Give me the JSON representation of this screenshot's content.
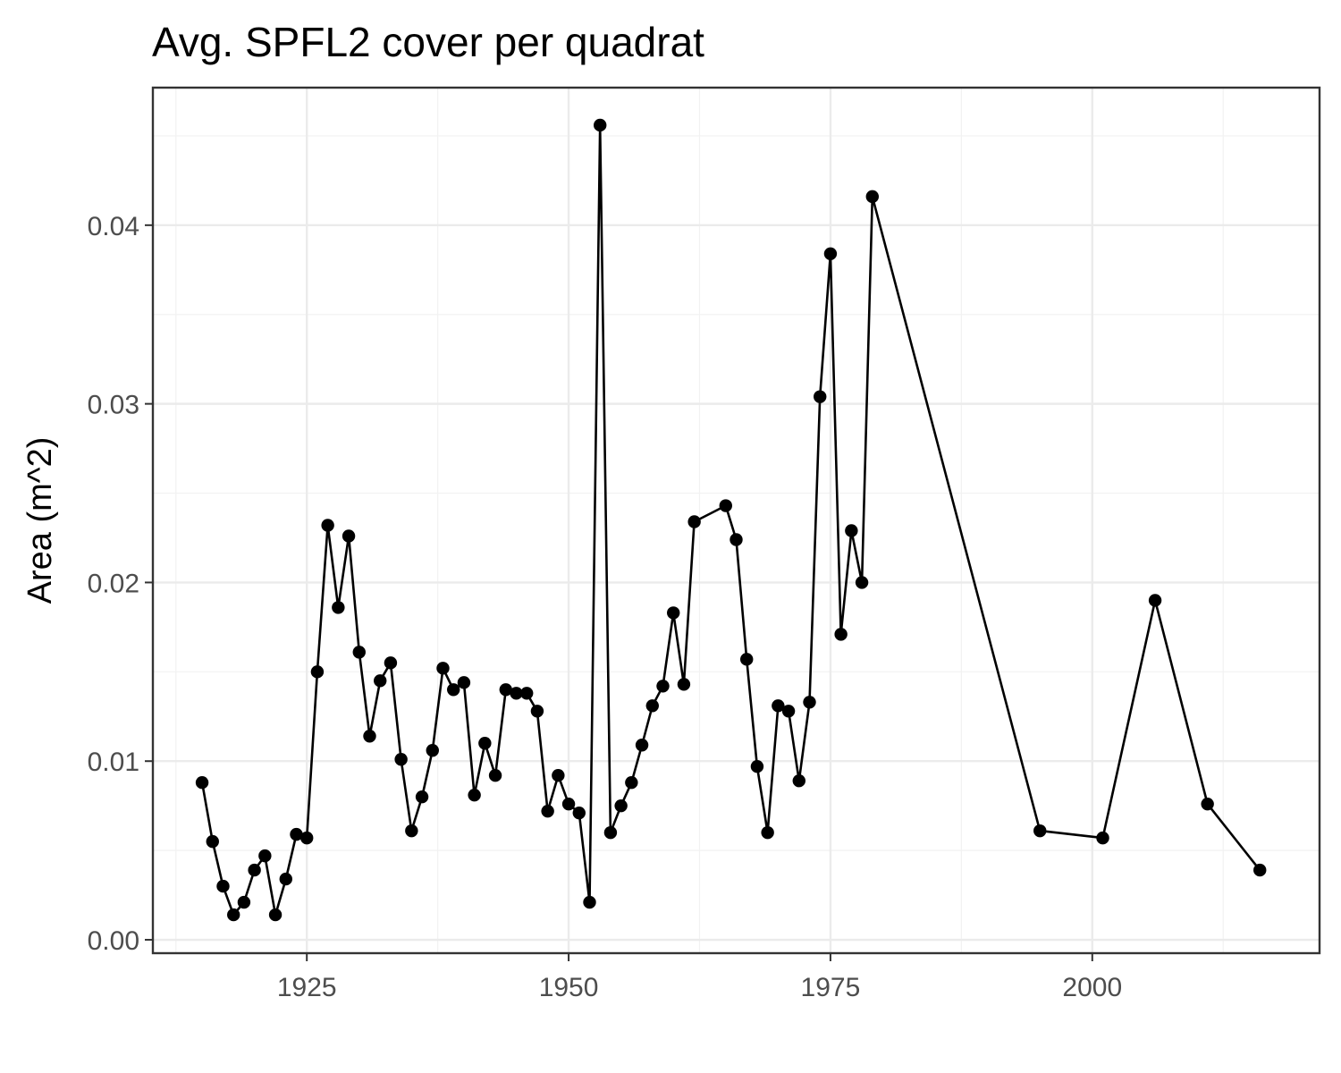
{
  "chart_data": {
    "type": "line",
    "title": "Avg. SPFL2 cover per quadrat",
    "xlabel": "",
    "ylabel": "Area (m^2)",
    "xlim": [
      1910.3,
      2021.7
    ],
    "ylim": [
      -0.00075,
      0.0477
    ],
    "x_ticks": [
      1925,
      1950,
      1975,
      2000
    ],
    "x_tick_labels": [
      "1925",
      "1950",
      "1975",
      "2000"
    ],
    "x_minor_ticks": [
      1912.5,
      1937.5,
      1962.5,
      1987.5,
      2012.5
    ],
    "y_ticks": [
      0,
      0.01,
      0.02,
      0.03,
      0.04
    ],
    "y_tick_labels": [
      "0.00",
      "0.01",
      "0.02",
      "0.03",
      "0.04"
    ],
    "y_minor_ticks": [
      0.005,
      0.015,
      0.025,
      0.035,
      0.045
    ],
    "grid": true,
    "legend": "none",
    "series": [
      {
        "color": "#000000",
        "points": [
          [
            1915,
            0.0088
          ],
          [
            1916,
            0.0055
          ],
          [
            1917,
            0.003
          ],
          [
            1918,
            0.0014
          ],
          [
            1919,
            0.0021
          ],
          [
            1920,
            0.0039
          ],
          [
            1921,
            0.0047
          ],
          [
            1922,
            0.0014
          ],
          [
            1923,
            0.0034
          ],
          [
            1924,
            0.0059
          ],
          [
            1925,
            0.0057
          ],
          [
            1926,
            0.015
          ],
          [
            1927,
            0.0232
          ],
          [
            1928,
            0.0186
          ],
          [
            1929,
            0.0226
          ],
          [
            1930,
            0.0161
          ],
          [
            1931,
            0.0114
          ],
          [
            1932,
            0.0145
          ],
          [
            1933,
            0.0155
          ],
          [
            1934,
            0.0101
          ],
          [
            1935,
            0.0061
          ],
          [
            1936,
            0.008
          ],
          [
            1937,
            0.0106
          ],
          [
            1938,
            0.0152
          ],
          [
            1939,
            0.014
          ],
          [
            1940,
            0.0144
          ],
          [
            1941,
            0.0081
          ],
          [
            1942,
            0.011
          ],
          [
            1943,
            0.0092
          ],
          [
            1944,
            0.014
          ],
          [
            1945,
            0.0138
          ],
          [
            1946,
            0.0138
          ],
          [
            1947,
            0.0128
          ],
          [
            1948,
            0.0072
          ],
          [
            1949,
            0.0092
          ],
          [
            1950,
            0.0076
          ],
          [
            1951,
            0.0071
          ],
          [
            1952,
            0.0021
          ],
          [
            1953,
            0.0456
          ],
          [
            1954,
            0.006
          ],
          [
            1955,
            0.0075
          ],
          [
            1956,
            0.0088
          ],
          [
            1957,
            0.0109
          ],
          [
            1958,
            0.0131
          ],
          [
            1959,
            0.0142
          ],
          [
            1960,
            0.0183
          ],
          [
            1961,
            0.0143
          ],
          [
            1962,
            0.0234
          ],
          [
            1965,
            0.0243
          ],
          [
            1966,
            0.0224
          ],
          [
            1967,
            0.0157
          ],
          [
            1968,
            0.0097
          ],
          [
            1969,
            0.006
          ],
          [
            1970,
            0.0131
          ],
          [
            1971,
            0.0128
          ],
          [
            1972,
            0.0089
          ],
          [
            1973,
            0.0133
          ],
          [
            1974,
            0.0304
          ],
          [
            1975,
            0.0384
          ],
          [
            1976,
            0.0171
          ],
          [
            1977,
            0.0229
          ],
          [
            1978,
            0.02
          ],
          [
            1979,
            0.0416
          ],
          [
            1995,
            0.0061
          ],
          [
            2001,
            0.0057
          ],
          [
            2006,
            0.019
          ],
          [
            2011,
            0.0076
          ],
          [
            2016,
            0.0039
          ]
        ]
      }
    ]
  }
}
